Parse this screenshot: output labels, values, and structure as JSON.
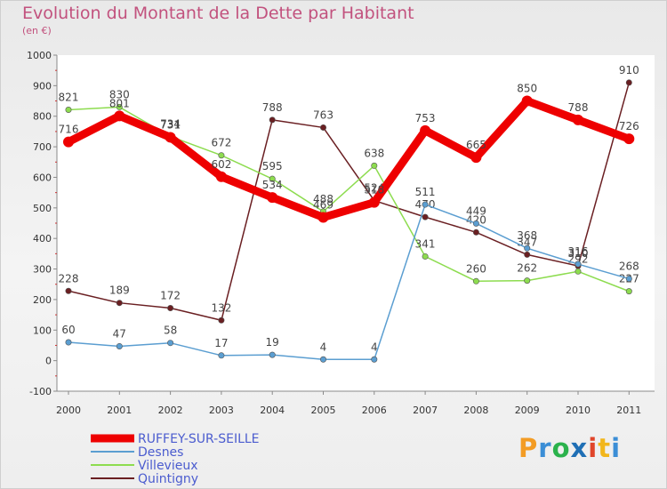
{
  "title": "Evolution du Montant de la Dette par Habitant",
  "subtitle": "(en €)",
  "logo": {
    "letters": [
      "P",
      "r",
      "o",
      "x",
      "i",
      "t",
      "i"
    ],
    "colors": [
      "#f39c24",
      "#3b8ed6",
      "#2bb24c",
      "#1f6fb5",
      "#e0452a",
      "#f2b61c",
      "#3b8ed6"
    ]
  },
  "chart_data": {
    "type": "line",
    "x": [
      "2000",
      "2001",
      "2002",
      "2003",
      "2004",
      "2005",
      "2006",
      "2007",
      "2008",
      "2009",
      "2010",
      "2011"
    ],
    "ylim": [
      -100,
      1000
    ],
    "yticks": [
      -100,
      0,
      100,
      200,
      300,
      400,
      500,
      600,
      700,
      800,
      900,
      1000
    ],
    "grid": false,
    "legend_position": "bottom-left",
    "series": [
      {
        "name": "Quintigny",
        "color": "#6a1f22",
        "values": [
          228,
          189,
          172,
          132,
          788,
          763,
          524,
          470,
          420,
          347,
          310,
          910
        ],
        "labels": [
          "228",
          "189",
          "172",
          "132",
          "788",
          "763",
          "524",
          "470",
          "420",
          "347",
          "310",
          "910"
        ]
      },
      {
        "name": "Villevieux",
        "color": "#8ddc4f",
        "values": [
          821,
          830,
          734,
          672,
          595,
          488,
          638,
          341,
          260,
          262,
          292,
          227
        ],
        "labels": [
          "821",
          "830",
          "734",
          "672",
          "595",
          "488",
          "638",
          "341",
          "260",
          "262",
          "292",
          "227"
        ]
      },
      {
        "name": "Desnes",
        "color": "#5b9ed1",
        "values": [
          60,
          47,
          58,
          17,
          19,
          4,
          4,
          511,
          449,
          368,
          316,
          268
        ],
        "labels": [
          "60",
          "47",
          "58",
          "17",
          "19",
          "4",
          "4",
          "511",
          "449",
          "368",
          "316",
          "268"
        ]
      },
      {
        "name": "RUFFEY-SUR-SEILLE",
        "color": "#ee0000",
        "values": [
          716,
          801,
          731,
          602,
          534,
          469,
          518,
          753,
          665,
          850,
          788,
          726
        ],
        "labels": [
          "716",
          "801",
          "731",
          "602",
          "534",
          "469",
          "518",
          "753",
          "665",
          "850",
          "788",
          "726"
        ]
      }
    ],
    "legend_order": [
      "RUFFEY-SUR-SEILLE",
      "Desnes",
      "Villevieux",
      "Quintigny"
    ]
  }
}
